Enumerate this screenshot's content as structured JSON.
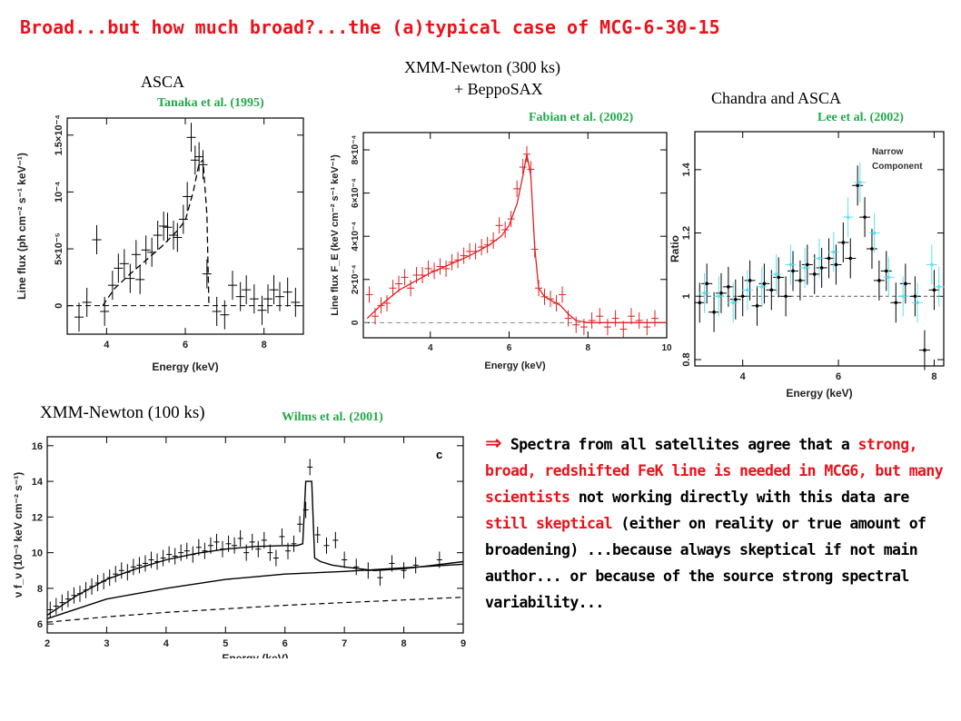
{
  "title": "Broad...but how much broad?...the (a)typical case of MCG-6-30-15",
  "panels": {
    "asca": {
      "label": "ASCA",
      "citation": "Tanaka et al. (1995)"
    },
    "xmm300": {
      "label_line1": "XMM-Newton (300 ks)",
      "label_line2": "+ BeppoSAX",
      "citation": "Fabian et al. (2002)"
    },
    "chandra": {
      "label": "Chandra and ASCA",
      "citation": "Lee et al. (2002)"
    },
    "xmm100": {
      "label": "XMM-Newton (100 ks)",
      "citation": "Wilms et al. (2001)"
    }
  },
  "text_block": {
    "arrow": "⇒",
    "p1": "Spectra from all satellites agree that a",
    "p2_red": "strong, broad, redshifted FeK line is needed in MCG6, but many scientists",
    "p3": "not working directly with this data are",
    "p4_red": "still skeptical",
    "p5": "(either on reality or true amount of broadening) ...because always skeptical if not main author... or because of the source strong spectral variability..."
  },
  "chart_data": [
    {
      "type": "scatter",
      "xlabel": "Energy (keV)",
      "ylabel": "Line flux (ph cm⁻² s⁻¹ keV⁻¹)",
      "xlim": [
        3,
        9
      ],
      "ylim": [
        -2.5e-05,
        0.000165
      ],
      "x_ticks": [
        4,
        6,
        8
      ],
      "y_ticks": [
        {
          "value": 0,
          "label": "0"
        },
        {
          "value": 5e-05,
          "label": "5×10⁻⁵"
        },
        {
          "value": 0.0001,
          "label": "10⁻⁴"
        },
        {
          "value": 0.00015,
          "label": "1.5×10⁻⁴"
        }
      ],
      "color": "#000000",
      "points": [
        {
          "x": 3.3,
          "y": -1e-05
        },
        {
          "x": 3.5,
          "y": 3e-06
        },
        {
          "x": 3.75,
          "y": 5.8e-05
        },
        {
          "x": 3.95,
          "y": -5e-06
        },
        {
          "x": 4.15,
          "y": 1.8e-05
        },
        {
          "x": 4.3,
          "y": 3.3e-05
        },
        {
          "x": 4.45,
          "y": 3.7e-05
        },
        {
          "x": 4.6,
          "y": 2.4e-05
        },
        {
          "x": 4.75,
          "y": 4.5e-05
        },
        {
          "x": 4.85,
          "y": 2.3e-05
        },
        {
          "x": 5.0,
          "y": 4.9e-05
        },
        {
          "x": 5.15,
          "y": 4.7e-05
        },
        {
          "x": 5.3,
          "y": 6.2e-05
        },
        {
          "x": 5.45,
          "y": 7e-05
        },
        {
          "x": 5.55,
          "y": 6.9e-05
        },
        {
          "x": 5.7,
          "y": 6.2e-05
        },
        {
          "x": 5.8,
          "y": 6e-05
        },
        {
          "x": 5.95,
          "y": 7.6e-05
        },
        {
          "x": 6.05,
          "y": 9.6e-05
        },
        {
          "x": 6.15,
          "y": 0.000148
        },
        {
          "x": 6.25,
          "y": 0.000128
        },
        {
          "x": 6.35,
          "y": 0.000131
        },
        {
          "x": 6.45,
          "y": 0.000124
        },
        {
          "x": 6.55,
          "y": 2.8e-05
        },
        {
          "x": 6.8,
          "y": -5e-06
        },
        {
          "x": 7.0,
          "y": -8e-06
        },
        {
          "x": 7.2,
          "y": 1.8e-05
        },
        {
          "x": 7.4,
          "y": 8e-06
        },
        {
          "x": 7.55,
          "y": 1.4e-05
        },
        {
          "x": 7.75,
          "y": 6e-06
        },
        {
          "x": 7.95,
          "y": -4e-06
        },
        {
          "x": 8.1,
          "y": 6e-06
        },
        {
          "x": 8.25,
          "y": 1.4e-05
        },
        {
          "x": 8.4,
          "y": 8e-06
        },
        {
          "x": 8.6,
          "y": 1.2e-05
        },
        {
          "x": 8.8,
          "y": 3e-06
        }
      ],
      "model_x": [
        3.9,
        4.2,
        4.6,
        5.0,
        5.4,
        5.8,
        6.0,
        6.2,
        6.35,
        6.45,
        6.55,
        6.6
      ],
      "model_y": [
        0,
        1.5e-05,
        2.8e-05,
        4e-05,
        5.2e-05,
        6.6e-05,
        7.5e-05,
        0.0001,
        0.000125,
        0.000128,
        8e-05,
        0
      ]
    },
    {
      "type": "line",
      "xlabel": "Energy (keV)",
      "ylabel": "Line flux F_E (keV cm⁻² s⁻¹ keV⁻¹)",
      "xlim": [
        2.3,
        10
      ],
      "ylim": [
        -7e-05,
        0.00088
      ],
      "x_ticks": [
        4,
        6,
        8,
        10
      ],
      "y_ticks": [
        {
          "value": 0,
          "label": "0"
        },
        {
          "value": 0.0002,
          "label": "2×10⁻⁴"
        },
        {
          "value": 0.0004,
          "label": "4×10⁻⁴"
        },
        {
          "value": 0.0006,
          "label": "6×10⁻⁴"
        },
        {
          "value": 0.0008,
          "label": "8×10⁻⁴"
        }
      ],
      "color": "#e02020",
      "points": [
        {
          "x": 2.45,
          "y": 0.00013
        },
        {
          "x": 2.6,
          "y": 3e-05
        },
        {
          "x": 2.75,
          "y": 8e-05
        },
        {
          "x": 2.9,
          "y": 9e-05
        },
        {
          "x": 3.05,
          "y": 0.00016
        },
        {
          "x": 3.2,
          "y": 0.00018
        },
        {
          "x": 3.35,
          "y": 0.00021
        },
        {
          "x": 3.5,
          "y": 0.00016
        },
        {
          "x": 3.65,
          "y": 0.00022
        },
        {
          "x": 3.8,
          "y": 0.00022
        },
        {
          "x": 3.95,
          "y": 0.00025
        },
        {
          "x": 4.1,
          "y": 0.00024
        },
        {
          "x": 4.25,
          "y": 0.00026
        },
        {
          "x": 4.4,
          "y": 0.00025
        },
        {
          "x": 4.55,
          "y": 0.00028
        },
        {
          "x": 4.7,
          "y": 0.00029
        },
        {
          "x": 4.85,
          "y": 0.00031
        },
        {
          "x": 5.0,
          "y": 0.00033
        },
        {
          "x": 5.15,
          "y": 0.00033
        },
        {
          "x": 5.3,
          "y": 0.00035
        },
        {
          "x": 5.45,
          "y": 0.00036
        },
        {
          "x": 5.6,
          "y": 0.00038
        },
        {
          "x": 5.75,
          "y": 0.00045
        },
        {
          "x": 5.9,
          "y": 0.00043
        },
        {
          "x": 6.05,
          "y": 0.00048
        },
        {
          "x": 6.2,
          "y": 0.00062
        },
        {
          "x": 6.35,
          "y": 0.00072
        },
        {
          "x": 6.45,
          "y": 0.00078
        },
        {
          "x": 6.55,
          "y": 0.00071
        },
        {
          "x": 6.65,
          "y": 0.00034
        },
        {
          "x": 6.75,
          "y": 0.00016
        },
        {
          "x": 6.9,
          "y": 0.00012
        },
        {
          "x": 7.05,
          "y": 0.00011
        },
        {
          "x": 7.2,
          "y": 9e-05
        },
        {
          "x": 7.35,
          "y": 0.00013
        },
        {
          "x": 7.5,
          "y": 2e-05
        },
        {
          "x": 7.7,
          "y": -1e-05
        },
        {
          "x": 7.9,
          "y": -2e-05
        },
        {
          "x": 8.1,
          "y": 1e-05
        },
        {
          "x": 8.3,
          "y": 3e-05
        },
        {
          "x": 8.5,
          "y": -2e-05
        },
        {
          "x": 8.7,
          "y": 2e-05
        },
        {
          "x": 8.9,
          "y": -3e-05
        },
        {
          "x": 9.1,
          "y": 3e-05
        },
        {
          "x": 9.3,
          "y": 1e-05
        },
        {
          "x": 9.5,
          "y": -2e-05
        },
        {
          "x": 9.7,
          "y": 2e-05
        }
      ],
      "model_x": [
        2.4,
        2.8,
        3.2,
        3.6,
        4.0,
        4.5,
        5.0,
        5.5,
        5.8,
        6.0,
        6.2,
        6.35,
        6.45,
        6.55,
        6.65,
        6.75,
        6.9,
        7.1,
        7.3,
        7.5,
        7.7,
        8.0,
        9.0,
        10.0
      ],
      "model_y": [
        2e-05,
        9e-05,
        0.00015,
        0.00019,
        0.00023,
        0.00027,
        0.00031,
        0.00036,
        0.0004,
        0.00045,
        0.00055,
        0.00068,
        0.00078,
        0.00068,
        0.00035,
        0.00016,
        0.00012,
        0.0001,
        8e-05,
        4e-05,
        1e-05,
        0,
        0,
        0
      ]
    },
    {
      "type": "scatter",
      "xlabel": "Energy (keV)",
      "ylabel": "Ratio",
      "xlim": [
        3,
        8.2
      ],
      "ylim": [
        0.78,
        1.52
      ],
      "x_ticks": [
        4,
        6,
        8
      ],
      "y_ticks": [
        {
          "value": 0.8,
          "label": "0.8"
        },
        {
          "value": 1.0,
          "label": "1"
        },
        {
          "value": 1.2,
          "label": "1.2"
        },
        {
          "value": 1.4,
          "label": "1.4"
        }
      ],
      "annotation": [
        "Narrow",
        "Component"
      ],
      "series": [
        {
          "color": "#000000",
          "points": [
            {
              "x": 3.1,
              "y": 0.98
            },
            {
              "x": 3.25,
              "y": 1.04
            },
            {
              "x": 3.4,
              "y": 0.95
            },
            {
              "x": 3.55,
              "y": 1.01
            },
            {
              "x": 3.7,
              "y": 1.03
            },
            {
              "x": 3.85,
              "y": 0.99
            },
            {
              "x": 4.0,
              "y": 1.0
            },
            {
              "x": 4.15,
              "y": 1.05
            },
            {
              "x": 4.3,
              "y": 0.97
            },
            {
              "x": 4.45,
              "y": 1.04
            },
            {
              "x": 4.6,
              "y": 1.02
            },
            {
              "x": 4.75,
              "y": 1.06
            },
            {
              "x": 4.9,
              "y": 1.0
            },
            {
              "x": 5.05,
              "y": 1.08
            },
            {
              "x": 5.2,
              "y": 1.05
            },
            {
              "x": 5.35,
              "y": 1.1
            },
            {
              "x": 5.5,
              "y": 1.07
            },
            {
              "x": 5.65,
              "y": 1.09
            },
            {
              "x": 5.8,
              "y": 1.12
            },
            {
              "x": 5.95,
              "y": 1.1
            },
            {
              "x": 6.1,
              "y": 1.17
            },
            {
              "x": 6.25,
              "y": 1.12
            },
            {
              "x": 6.4,
              "y": 1.35
            },
            {
              "x": 6.55,
              "y": 1.25
            },
            {
              "x": 6.7,
              "y": 1.15
            },
            {
              "x": 6.85,
              "y": 1.05
            },
            {
              "x": 7.0,
              "y": 1.08
            },
            {
              "x": 7.2,
              "y": 0.98
            },
            {
              "x": 7.4,
              "y": 1.04
            },
            {
              "x": 7.6,
              "y": 1.0
            },
            {
              "x": 7.8,
              "y": 0.83
            },
            {
              "x": 8.0,
              "y": 1.02
            }
          ]
        },
        {
          "color": "#5fe0f0",
          "points": [
            {
              "x": 3.2,
              "y": 1.01
            },
            {
              "x": 3.5,
              "y": 1.0
            },
            {
              "x": 3.8,
              "y": 0.98
            },
            {
              "x": 4.1,
              "y": 1.02
            },
            {
              "x": 4.4,
              "y": 1.03
            },
            {
              "x": 4.7,
              "y": 1.07
            },
            {
              "x": 5.0,
              "y": 1.1
            },
            {
              "x": 5.3,
              "y": 1.09
            },
            {
              "x": 5.6,
              "y": 1.12
            },
            {
              "x": 5.9,
              "y": 1.14
            },
            {
              "x": 6.2,
              "y": 1.25
            },
            {
              "x": 6.45,
              "y": 1.36
            },
            {
              "x": 6.75,
              "y": 1.2
            },
            {
              "x": 7.05,
              "y": 1.06
            },
            {
              "x": 7.35,
              "y": 1.0
            },
            {
              "x": 7.65,
              "y": 0.98
            },
            {
              "x": 7.95,
              "y": 1.1
            },
            {
              "x": 8.1,
              "y": 1.03
            }
          ]
        }
      ],
      "reference_y": 1.0
    },
    {
      "type": "line",
      "title": "c",
      "xlabel": "Energy (keV)",
      "ylabel": "ν f_ν (10⁻³ keV cm⁻² s⁻¹)",
      "xlim": [
        2,
        9
      ],
      "ylim": [
        5.5,
        16.5
      ],
      "x_ticks": [
        2,
        3,
        4,
        5,
        6,
        7,
        8,
        9
      ],
      "y_ticks": [
        {
          "value": 6,
          "label": "6"
        },
        {
          "value": 8,
          "label": "8"
        },
        {
          "value": 10,
          "label": "10"
        },
        {
          "value": 12,
          "label": "12"
        },
        {
          "value": 14,
          "label": "14"
        },
        {
          "value": 16,
          "label": "16"
        }
      ],
      "color": "#000000",
      "points": [
        {
          "x": 2.05,
          "y": 6.8
        },
        {
          "x": 2.15,
          "y": 7.0
        },
        {
          "x": 2.25,
          "y": 7.2
        },
        {
          "x": 2.35,
          "y": 7.4
        },
        {
          "x": 2.45,
          "y": 7.6
        },
        {
          "x": 2.55,
          "y": 7.7
        },
        {
          "x": 2.65,
          "y": 7.9
        },
        {
          "x": 2.75,
          "y": 8.1
        },
        {
          "x": 2.85,
          "y": 8.3
        },
        {
          "x": 2.95,
          "y": 8.4
        },
        {
          "x": 3.05,
          "y": 8.6
        },
        {
          "x": 3.15,
          "y": 8.8
        },
        {
          "x": 3.25,
          "y": 9.0
        },
        {
          "x": 3.35,
          "y": 8.9
        },
        {
          "x": 3.45,
          "y": 9.2
        },
        {
          "x": 3.55,
          "y": 9.3
        },
        {
          "x": 3.65,
          "y": 9.4
        },
        {
          "x": 3.75,
          "y": 9.6
        },
        {
          "x": 3.85,
          "y": 9.5
        },
        {
          "x": 3.95,
          "y": 9.7
        },
        {
          "x": 4.05,
          "y": 9.9
        },
        {
          "x": 4.15,
          "y": 9.8
        },
        {
          "x": 4.25,
          "y": 10.0
        },
        {
          "x": 4.35,
          "y": 10.1
        },
        {
          "x": 4.45,
          "y": 9.9
        },
        {
          "x": 4.55,
          "y": 10.3
        },
        {
          "x": 4.65,
          "y": 10.1
        },
        {
          "x": 4.75,
          "y": 10.4
        },
        {
          "x": 4.85,
          "y": 10.6
        },
        {
          "x": 4.95,
          "y": 10.2
        },
        {
          "x": 5.05,
          "y": 10.5
        },
        {
          "x": 5.15,
          "y": 10.4
        },
        {
          "x": 5.25,
          "y": 10.8
        },
        {
          "x": 5.35,
          "y": 10.0
        },
        {
          "x": 5.45,
          "y": 10.6
        },
        {
          "x": 5.55,
          "y": 10.2
        },
        {
          "x": 5.65,
          "y": 10.7
        },
        {
          "x": 5.75,
          "y": 10.0
        },
        {
          "x": 5.85,
          "y": 9.7
        },
        {
          "x": 5.95,
          "y": 10.9
        },
        {
          "x": 6.05,
          "y": 10.1
        },
        {
          "x": 6.15,
          "y": 10.5
        },
        {
          "x": 6.25,
          "y": 11.6
        },
        {
          "x": 6.35,
          "y": 12.4
        },
        {
          "x": 6.42,
          "y": 14.8
        },
        {
          "x": 6.55,
          "y": 11.0
        },
        {
          "x": 6.7,
          "y": 10.4
        },
        {
          "x": 6.85,
          "y": 10.7
        },
        {
          "x": 7.0,
          "y": 9.6
        },
        {
          "x": 7.2,
          "y": 9.2
        },
        {
          "x": 7.4,
          "y": 9.0
        },
        {
          "x": 7.6,
          "y": 8.6
        },
        {
          "x": 7.8,
          "y": 9.4
        },
        {
          "x": 8.0,
          "y": 9.0
        },
        {
          "x": 8.2,
          "y": 9.3
        },
        {
          "x": 8.6,
          "y": 9.6
        }
      ],
      "model_x": [
        2.0,
        2.5,
        3.0,
        3.5,
        4.0,
        4.5,
        5.0,
        5.5,
        6.0,
        6.2,
        6.3,
        6.35,
        6.45,
        6.5,
        6.6,
        6.8,
        7.0,
        7.5,
        8.0,
        8.5,
        9.0
      ],
      "model_y": [
        6.5,
        7.6,
        8.5,
        9.1,
        9.6,
        9.95,
        10.2,
        10.35,
        10.4,
        10.4,
        10.5,
        14.0,
        14.0,
        9.7,
        9.5,
        9.3,
        9.2,
        9.0,
        9.1,
        9.3,
        9.5
      ],
      "continuum_x": [
        2.0,
        3.0,
        4.0,
        5.0,
        6.0,
        7.0,
        8.0,
        9.0
      ],
      "continuum_y": [
        6.3,
        7.4,
        8.0,
        8.5,
        8.8,
        8.95,
        9.15,
        9.35
      ],
      "dashed_x": [
        2.0,
        3.0,
        4.0,
        5.0,
        6.0,
        7.0,
        8.0,
        9.0
      ],
      "dashed_y": [
        6.1,
        6.4,
        6.65,
        6.85,
        7.05,
        7.2,
        7.35,
        7.5
      ]
    }
  ]
}
